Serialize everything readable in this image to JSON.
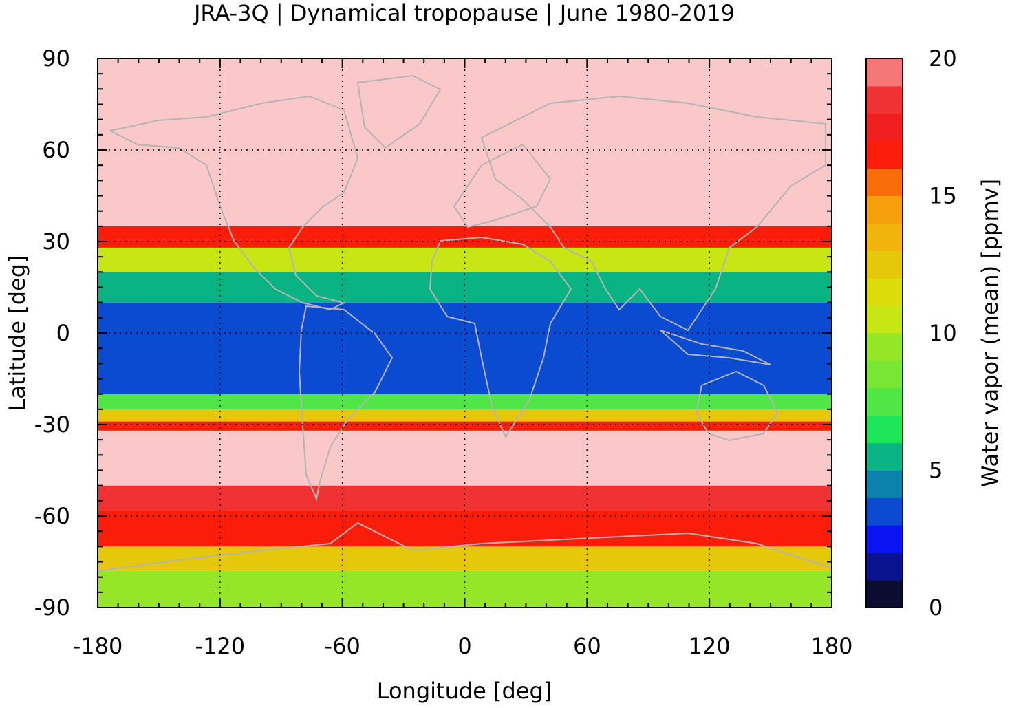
{
  "chart_data": {
    "type": "heatmap",
    "title": "JRA-3Q | Dynamical tropopause | June 1980-2019",
    "xlabel": "Longitude [deg]",
    "ylabel": "Latitude [deg]",
    "xlim": [
      -180,
      180
    ],
    "ylim": [
      -90,
      90
    ],
    "x_ticks": [
      -180,
      -120,
      -60,
      0,
      60,
      120,
      180
    ],
    "y_ticks": [
      -90,
      -60,
      -30,
      0,
      30,
      60,
      90
    ],
    "grid": true,
    "colorbar": {
      "label": "Water vapor (mean) [ppmv]",
      "range": [
        0,
        20
      ],
      "ticks": [
        0,
        5,
        10,
        15,
        20
      ],
      "levels": [
        0,
        1,
        2,
        3,
        4,
        5,
        6,
        7,
        8,
        9,
        10,
        11,
        12,
        13,
        14,
        15,
        16,
        17,
        18,
        19,
        20
      ],
      "colors": [
        "#0c0c30",
        "#0a1490",
        "#0a14f0",
        "#0a4bd2",
        "#0a82aa",
        "#0ab482",
        "#1ee65a",
        "#50e646",
        "#78e632",
        "#96e628",
        "#c8e614",
        "#dcdc0a",
        "#e6c80a",
        "#f0b40a",
        "#f5a00a",
        "#fa6e0a",
        "#fa1e0a",
        "#f01e1e",
        "#f03232",
        "#f57878",
        "#fac8c8"
      ]
    },
    "field_description_bands": [
      {
        "lat_range": [
          -90,
          -78
        ],
        "value": 9
      },
      {
        "lat_range": [
          -78,
          -70
        ],
        "value": 12
      },
      {
        "lat_range": [
          -70,
          -58
        ],
        "value": 16
      },
      {
        "lat_range": [
          -58,
          -50
        ],
        "value": 18.5
      },
      {
        "lat_range": [
          -50,
          -32
        ],
        "value": 20
      },
      {
        "lat_range": [
          -32,
          -29
        ],
        "value": 16
      },
      {
        "lat_range": [
          -29,
          -25
        ],
        "value": 12
      },
      {
        "lat_range": [
          -25,
          -20
        ],
        "value": 7
      },
      {
        "lat_range": [
          -20,
          10
        ],
        "value": 3.5
      },
      {
        "lat_range": [
          10,
          20
        ],
        "value": 5
      },
      {
        "lat_range": [
          20,
          28
        ],
        "value": 10
      },
      {
        "lat_range": [
          28,
          35
        ],
        "value": 16
      },
      {
        "lat_range": [
          35,
          90
        ],
        "value": 20
      }
    ]
  }
}
